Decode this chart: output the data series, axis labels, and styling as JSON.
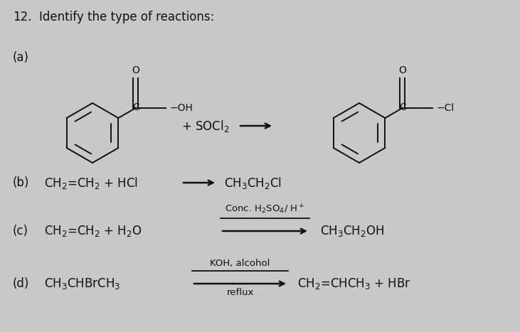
{
  "title_num": "12.",
  "title_text": "Identify the type of reactions:",
  "bg_color": "#c8c8c8",
  "text_color": "#111111",
  "label_a": "(a)",
  "label_b": "(b)",
  "label_c": "(c)",
  "label_d": "(d)",
  "plus_socl2": "+ SOCl$_2$",
  "reaction_b_left": "CH$_2$=CH$_2$ + HCl",
  "reaction_b_right": "CH$_3$CH$_2$Cl",
  "reaction_c_left": "CH$_2$=CH$_2$ + H$_2$O",
  "reaction_c_arrow_top": "Conc. H$_2$SO$_4$/ H$^+$",
  "reaction_c_right": "CH$_3$CH$_2$OH",
  "reaction_d_left": "CH$_3$CHBrCH$_3$",
  "reaction_d_arrow_top": "KOH, alcohol",
  "reaction_d_arrow_bot": "reflux",
  "reaction_d_right": "CH$_2$=CHCH$_3$ + HBr",
  "fontsize_main": 12,
  "fontsize_chem": 12,
  "fontsize_small": 9.5
}
